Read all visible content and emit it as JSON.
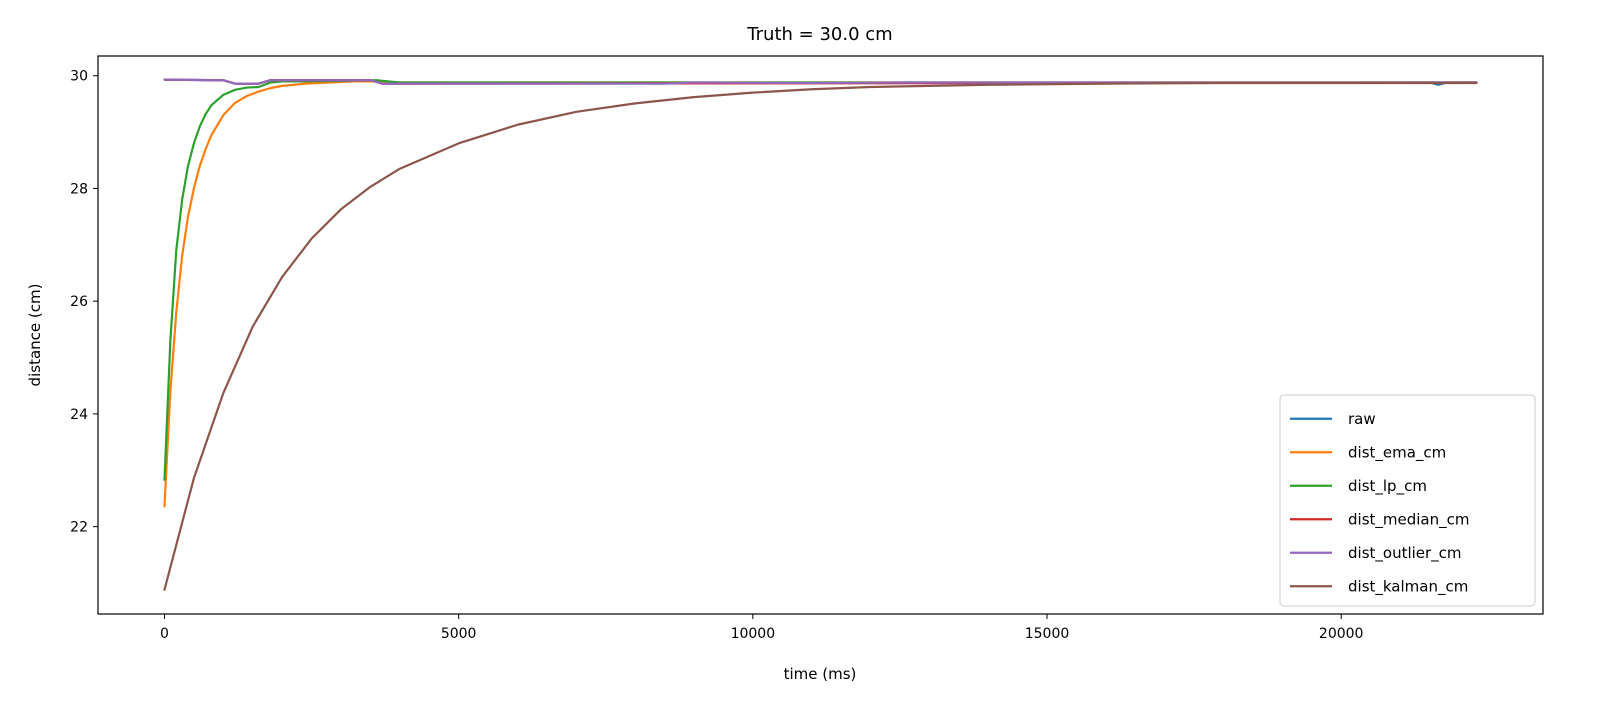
{
  "chart_data": {
    "type": "line",
    "title": "Truth = 30.0 cm",
    "xlabel": "time (ms)",
    "ylabel": "distance (cm)",
    "xlim": [
      -1130,
      23430
    ],
    "ylim": [
      20.45,
      30.35
    ],
    "xticks": [
      0,
      5000,
      10000,
      15000,
      20000
    ],
    "xtick_labels": [
      "0",
      "5000",
      "10000",
      "15000",
      "20000"
    ],
    "yticks": [
      22,
      24,
      26,
      28,
      30
    ],
    "ytick_labels": [
      "22",
      "24",
      "26",
      "28",
      "30"
    ],
    "grid": false,
    "legend_position": "lower right",
    "series": [
      {
        "name": "raw",
        "color": "#1f77b4",
        "x": [
          0,
          1000,
          1200,
          1600,
          1800,
          3500,
          3700,
          21500,
          21650,
          21800,
          22300
        ],
        "y": [
          29.93,
          29.92,
          29.86,
          29.86,
          29.92,
          29.92,
          29.86,
          29.88,
          29.84,
          29.88,
          29.88
        ]
      },
      {
        "name": "dist_ema_cm",
        "color": "#ff7f0e",
        "x": [
          0,
          100,
          200,
          300,
          400,
          500,
          600,
          700,
          800,
          1000,
          1200,
          1400,
          1600,
          1800,
          2000,
          2400,
          2800,
          3200,
          3600,
          4000,
          22300
        ],
        "y": [
          22.36,
          24.4,
          25.8,
          26.8,
          27.5,
          28.0,
          28.4,
          28.7,
          28.95,
          29.3,
          29.52,
          29.64,
          29.72,
          29.78,
          29.82,
          29.86,
          29.88,
          29.9,
          29.9,
          29.88,
          29.88
        ]
      },
      {
        "name": "dist_lp_cm",
        "color": "#2ca02c",
        "x": [
          0,
          100,
          200,
          300,
          400,
          500,
          600,
          700,
          800,
          1000,
          1200,
          1400,
          1600,
          1800,
          2000,
          2400,
          3600,
          4000,
          22300
        ],
        "y": [
          22.83,
          25.3,
          26.9,
          27.8,
          28.4,
          28.8,
          29.1,
          29.32,
          29.48,
          29.66,
          29.75,
          29.79,
          29.8,
          29.88,
          29.9,
          29.9,
          29.92,
          29.88,
          29.88
        ]
      },
      {
        "name": "dist_median_cm",
        "color": "#d62728",
        "x": [
          0,
          1000,
          1200,
          1600,
          1800,
          3500,
          3700,
          22300
        ],
        "y": [
          29.93,
          29.92,
          29.86,
          29.86,
          29.92,
          29.92,
          29.86,
          29.88
        ]
      },
      {
        "name": "dist_outlier_cm",
        "color": "#9467bd",
        "x": [
          0,
          1000,
          1200,
          1600,
          1800,
          3500,
          3700,
          8500,
          9000,
          11000,
          12500,
          22300
        ],
        "y": [
          29.93,
          29.92,
          29.86,
          29.86,
          29.92,
          29.92,
          29.86,
          29.86,
          29.88,
          29.87,
          29.88,
          29.88
        ]
      },
      {
        "name": "dist_kalman_cm",
        "color": "#8c564b",
        "x": [
          0,
          500,
          1000,
          1500,
          2000,
          2500,
          3000,
          3500,
          4000,
          5000,
          6000,
          7000,
          8000,
          9000,
          10000,
          11000,
          12000,
          13000,
          14000,
          16000,
          18000,
          20000,
          22300
        ],
        "y": [
          20.88,
          22.86,
          24.37,
          25.55,
          26.43,
          27.11,
          27.63,
          28.03,
          28.35,
          28.8,
          29.13,
          29.36,
          29.51,
          29.62,
          29.7,
          29.76,
          29.8,
          29.82,
          29.84,
          29.86,
          29.87,
          29.87,
          29.87
        ]
      }
    ]
  }
}
